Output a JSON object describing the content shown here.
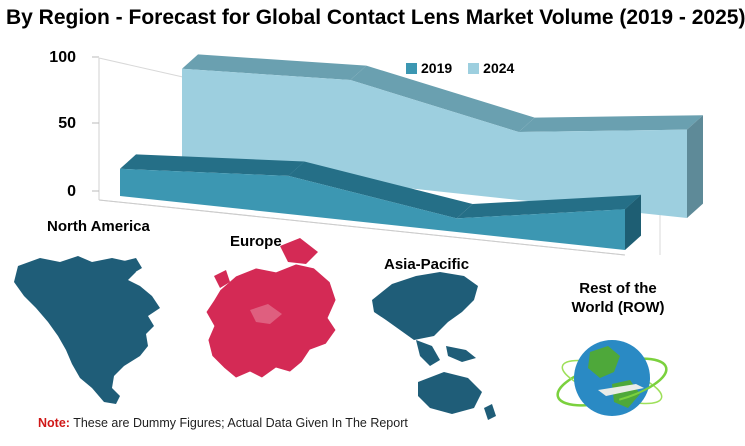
{
  "title": "By Region  - Forecast for Global Contact Lens Market Volume (2019  - 2025)",
  "chart_data": {
    "type": "area",
    "categories": [
      "North America",
      "Europe",
      "Asia-Pacific",
      "Rest of the World (ROW)"
    ],
    "series": [
      {
        "name": "2019",
        "values": [
          20,
          28,
          10,
          30
        ],
        "color": "#3c97b2"
      },
      {
        "name": "2024",
        "values": [
          70,
          75,
          50,
          65
        ],
        "color": "#9dcfdf"
      }
    ],
    "ylim": [
      0,
      100
    ],
    "yticks": [
      "0",
      "50",
      "100"
    ],
    "legend_position": "top-right"
  },
  "regions": {
    "north_america": "North America",
    "europe": "Europe",
    "asia_pacific": "Asia-Pacific",
    "row_line1": "Rest of the",
    "row_line2": "World (ROW)"
  },
  "note": {
    "label": "Note:",
    "text": " These are Dummy Figures; Actual Data Given In The Report"
  },
  "colors": {
    "map_north_america": "#1f5d78",
    "map_europe": "#d42a55",
    "map_asia": "#1f5d78",
    "globe_ocean": "#2a8ac4",
    "globe_land": "#4ea83a",
    "orbit": "#7bd13e"
  }
}
